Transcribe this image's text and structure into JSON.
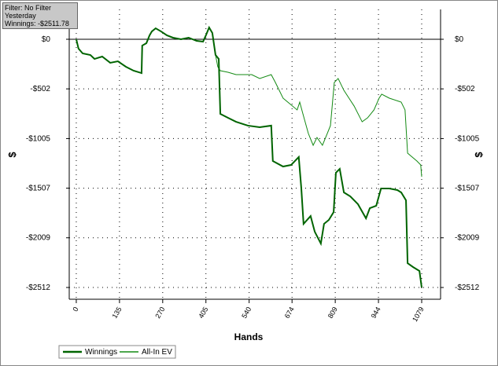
{
  "info": {
    "filter": "Filter: No Filter",
    "period": "Yesterday",
    "winnings": "Winnings: -$2511.78"
  },
  "chart_data": {
    "type": "line",
    "x_label": "Hands",
    "y_label": "$",
    "xlim": [
      -22,
      1138
    ],
    "xticks": [
      0,
      135,
      270,
      405,
      540,
      674,
      809,
      944,
      1079
    ],
    "ylim": [
      -2631,
      302
    ],
    "yticks": [
      {
        "value": 0,
        "label": "$0"
      },
      {
        "value": -502,
        "label": "-$502"
      },
      {
        "value": -1005,
        "label": "-$1005"
      },
      {
        "value": -1507,
        "label": "-$1507"
      },
      {
        "value": -2009,
        "label": "-$2009"
      },
      {
        "value": -2512,
        "label": "-$2512"
      }
    ],
    "grid": true,
    "series": [
      {
        "name": "Winnings",
        "color": "#006400",
        "x": [
          0,
          7,
          20,
          44,
          57,
          81,
          106,
          130,
          155,
          179,
          204,
          206,
          219,
          229,
          236,
          248,
          265,
          283,
          302,
          327,
          351,
          376,
          396,
          405,
          415,
          425,
          435,
          445,
          450,
          474,
          499,
          536,
          573,
          609,
          614,
          646,
          671,
          695,
          703,
          710,
          732,
          745,
          764,
          774,
          789,
          804,
          811,
          823,
          836,
          856,
          880,
          905,
          917,
          937,
          952,
          978,
          1003,
          1015,
          1030,
          1035,
          1052,
          1072,
          1079
        ],
        "values": [
          0,
          -95,
          -143,
          -159,
          -199,
          -175,
          -238,
          -223,
          -278,
          -318,
          -342,
          -64,
          -40,
          40,
          79,
          111,
          79,
          40,
          16,
          0,
          16,
          -16,
          -24,
          40,
          119,
          64,
          -159,
          -199,
          -755,
          -795,
          -835,
          -874,
          -890,
          -874,
          -1232,
          -1288,
          -1272,
          -1192,
          -1510,
          -1868,
          -1789,
          -1948,
          -2067,
          -1868,
          -1828,
          -1749,
          -1351,
          -1312,
          -1550,
          -1590,
          -1669,
          -1812,
          -1709,
          -1685,
          -1510,
          -1510,
          -1526,
          -1550,
          -1630,
          -2266,
          -2305,
          -2345,
          -2512
        ]
      },
      {
        "name": "All-In EV",
        "color": "#138a13",
        "x": [
          0,
          7,
          20,
          44,
          57,
          81,
          106,
          130,
          155,
          179,
          204,
          206,
          219,
          229,
          236,
          248,
          265,
          283,
          302,
          327,
          351,
          376,
          396,
          405,
          415,
          425,
          435,
          442,
          450,
          474,
          499,
          548,
          573,
          609,
          622,
          646,
          690,
          698,
          708,
          725,
          740,
          752,
          769,
          784,
          794,
          806,
          818,
          836,
          868,
          893,
          910,
          930,
          946,
          954,
          978,
          1015,
          1027,
          1035,
          1064,
          1076,
          1079
        ],
        "values": [
          0,
          -95,
          -143,
          -159,
          -199,
          -175,
          -238,
          -223,
          -278,
          -318,
          -342,
          -64,
          -40,
          40,
          79,
          111,
          79,
          40,
          16,
          0,
          16,
          -16,
          -24,
          40,
          119,
          64,
          -159,
          -278,
          -318,
          -334,
          -358,
          -358,
          -397,
          -358,
          -437,
          -596,
          -715,
          -636,
          -755,
          -954,
          -1073,
          -994,
          -1073,
          -954,
          -874,
          -437,
          -397,
          -517,
          -676,
          -835,
          -795,
          -715,
          -596,
          -556,
          -596,
          -636,
          -715,
          -1153,
          -1232,
          -1272,
          -1391
        ]
      }
    ]
  }
}
